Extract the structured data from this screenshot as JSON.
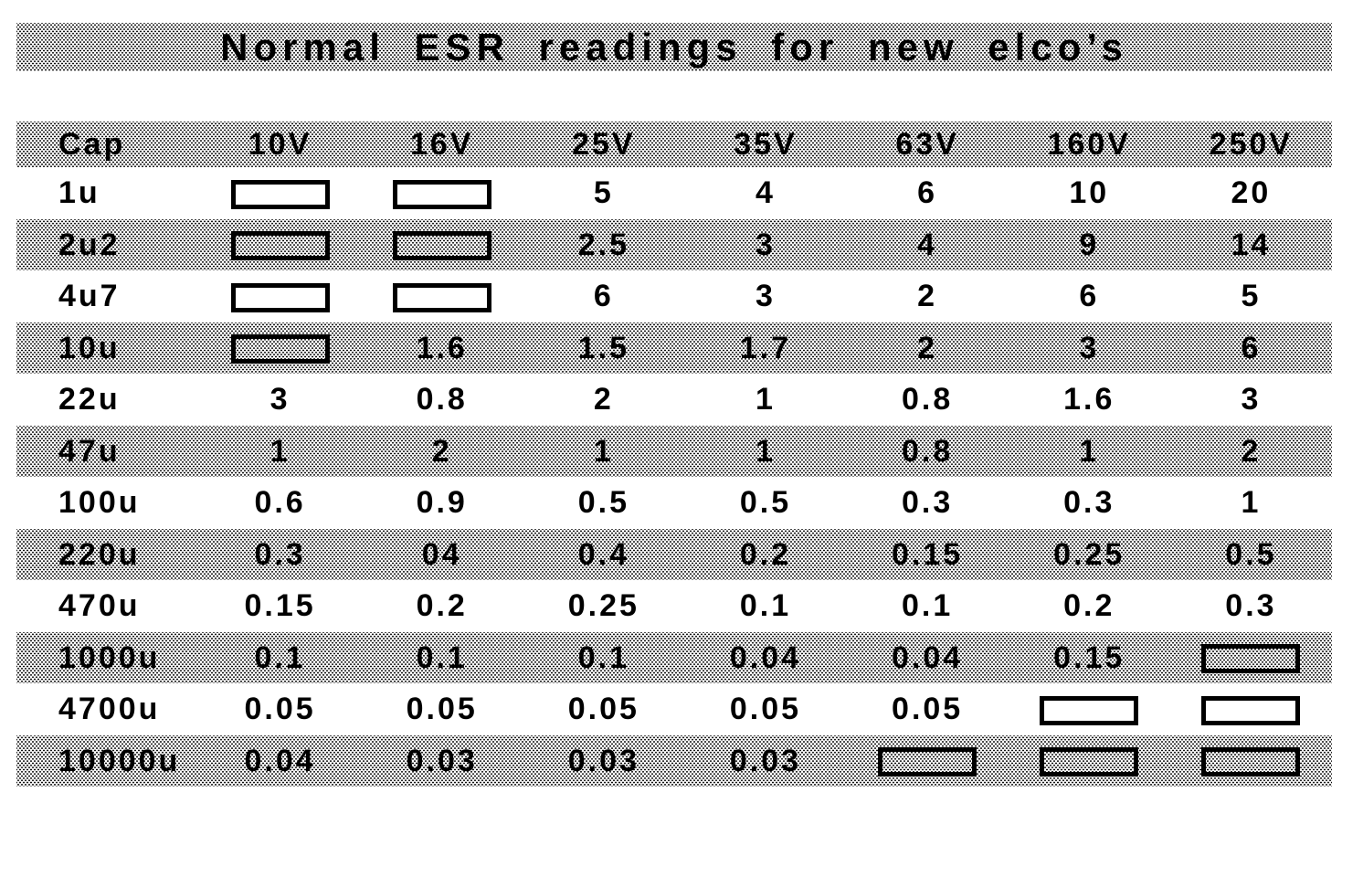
{
  "title": "Normal ESR readings for new elco’s",
  "chart_data": {
    "type": "table",
    "title": "Normal ESR readings for new elco’s",
    "columns": [
      "Cap",
      "10V",
      "16V",
      "25V",
      "35V",
      "63V",
      "160V",
      "250V"
    ],
    "blank_cell_marker": "box",
    "rows": [
      {
        "cap": "1u",
        "values": [
          "box",
          "box",
          "5",
          "4",
          "6",
          "10",
          "20"
        ]
      },
      {
        "cap": "2u2",
        "values": [
          "box",
          "box",
          "2.5",
          "3",
          "4",
          "9",
          "14"
        ]
      },
      {
        "cap": "4u7",
        "values": [
          "box",
          "box",
          "6",
          "3",
          "2",
          "6",
          "5"
        ]
      },
      {
        "cap": "10u",
        "values": [
          "box",
          "1.6",
          "1.5",
          "1.7",
          "2",
          "3",
          "6"
        ]
      },
      {
        "cap": "22u",
        "values": [
          "3",
          "0.8",
          "2",
          "1",
          "0.8",
          "1.6",
          "3"
        ]
      },
      {
        "cap": "47u",
        "values": [
          "1",
          "2",
          "1",
          "1",
          "0.8",
          "1",
          "2"
        ]
      },
      {
        "cap": "100u",
        "values": [
          "0.6",
          "0.9",
          "0.5",
          "0.5",
          "0.3",
          "0.3",
          "1"
        ]
      },
      {
        "cap": "220u",
        "values": [
          "0.3",
          "04",
          "0.4",
          "0.2",
          "0.15",
          "0.25",
          "0.5"
        ]
      },
      {
        "cap": "470u",
        "values": [
          "0.15",
          "0.2",
          "0.25",
          "0.1",
          "0.1",
          "0.2",
          "0.3"
        ]
      },
      {
        "cap": "1000u",
        "values": [
          "0.1",
          "0.1",
          "0.1",
          "0.04",
          "0.04",
          "0.15",
          "box"
        ]
      },
      {
        "cap": "4700u",
        "values": [
          "0.05",
          "0.05",
          "0.05",
          "0.05",
          "0.05",
          "box",
          "box"
        ]
      },
      {
        "cap": "10000u",
        "values": [
          "0.04",
          "0.03",
          "0.03",
          "0.03",
          "box",
          "box",
          "box"
        ]
      }
    ]
  }
}
